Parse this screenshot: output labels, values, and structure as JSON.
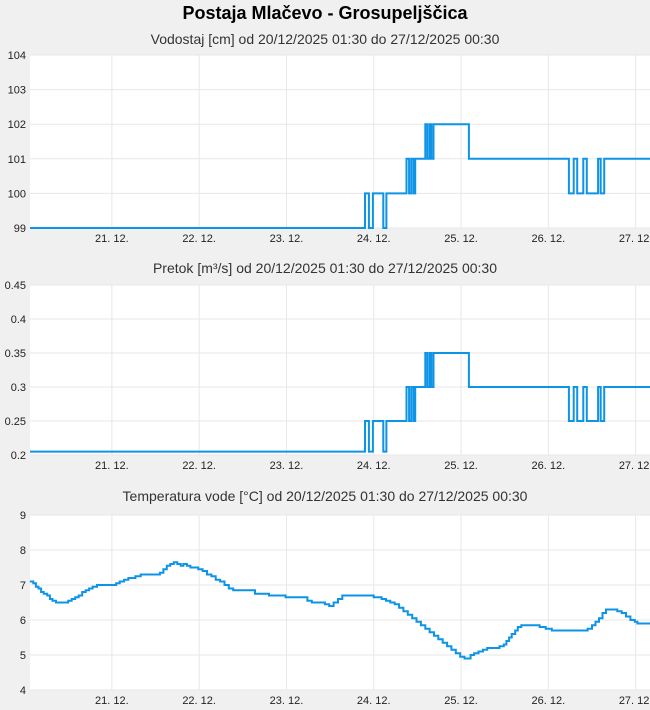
{
  "station": {
    "title": "Postaja Mlačevo - Grosupeljščica"
  },
  "colors": {
    "page_bg": "#f0f0f0",
    "plot_bg": "#ffffff",
    "gridline": "#e7e7e7",
    "line": "#0d94e6",
    "title_text": "#000000",
    "subtitle_text": "#333333",
    "tick_text": "#222222"
  },
  "chart_data": [
    {
      "type": "line",
      "title": "Vodostaj [cm] od 20/12/2025 01:30 do 27/12/2025 00:30",
      "unit": "cm",
      "ylim": [
        99,
        104
      ],
      "yticks": [
        99,
        100,
        101,
        102,
        103,
        104
      ],
      "ytick_labels": [
        "99",
        "100",
        "101",
        "102",
        "103",
        "104"
      ],
      "x_range_days": [
        20.0625,
        27.0208
      ],
      "x_tick_days": [
        21,
        22,
        23,
        24,
        25,
        26,
        27
      ],
      "x_tick_labels": [
        "21. 12.",
        "22. 12.",
        "23. 12.",
        "24. 12.",
        "25. 12.",
        "26. 12.",
        "27. 12."
      ],
      "grid": true,
      "legend": "none",
      "steps": [
        [
          20.0625,
          99
        ],
        [
          23.9,
          100
        ],
        [
          23.945,
          99
        ],
        [
          23.99,
          100
        ],
        [
          24.11,
          99
        ],
        [
          24.145,
          100
        ],
        [
          24.375,
          101
        ],
        [
          24.405,
          100
        ],
        [
          24.43,
          101
        ],
        [
          24.455,
          100
        ],
        [
          24.475,
          101
        ],
        [
          24.59,
          102
        ],
        [
          24.615,
          101
        ],
        [
          24.64,
          102
        ],
        [
          24.66,
          101
        ],
        [
          24.685,
          102
        ],
        [
          25.09,
          101
        ],
        [
          26.235,
          100
        ],
        [
          26.29,
          101
        ],
        [
          26.33,
          100
        ],
        [
          26.4,
          101
        ],
        [
          26.44,
          100
        ],
        [
          26.57,
          101
        ],
        [
          26.6,
          100
        ],
        [
          26.64,
          101
        ]
      ]
    },
    {
      "type": "line",
      "title": "Pretok [m³/s] od 20/12/2025 01:30 do 27/12/2025 00:30",
      "unit": "m³/s",
      "ylim": [
        0.2,
        0.45
      ],
      "yticks": [
        0.2,
        0.25,
        0.3,
        0.35,
        0.4,
        0.45
      ],
      "ytick_labels": [
        "0.2",
        "0.25",
        "0.3",
        "0.35",
        "0.4",
        "0.45"
      ],
      "x_range_days": [
        20.0625,
        27.0208
      ],
      "x_tick_days": [
        21,
        22,
        23,
        24,
        25,
        26,
        27
      ],
      "x_tick_labels": [
        "21. 12.",
        "22. 12.",
        "23. 12.",
        "24. 12.",
        "25. 12.",
        "26. 12.",
        "27. 12."
      ],
      "grid": true,
      "legend": "none",
      "steps": [
        [
          20.0625,
          0.205
        ],
        [
          23.9,
          0.25
        ],
        [
          23.945,
          0.205
        ],
        [
          23.99,
          0.25
        ],
        [
          24.11,
          0.205
        ],
        [
          24.145,
          0.25
        ],
        [
          24.375,
          0.3
        ],
        [
          24.405,
          0.25
        ],
        [
          24.43,
          0.3
        ],
        [
          24.455,
          0.25
        ],
        [
          24.475,
          0.3
        ],
        [
          24.59,
          0.35
        ],
        [
          24.615,
          0.3
        ],
        [
          24.64,
          0.35
        ],
        [
          24.66,
          0.3
        ],
        [
          24.685,
          0.35
        ],
        [
          25.09,
          0.3
        ],
        [
          26.235,
          0.25
        ],
        [
          26.29,
          0.3
        ],
        [
          26.33,
          0.25
        ],
        [
          26.4,
          0.3
        ],
        [
          26.44,
          0.25
        ],
        [
          26.57,
          0.3
        ],
        [
          26.6,
          0.25
        ],
        [
          26.64,
          0.3
        ]
      ]
    },
    {
      "type": "line",
      "title": "Temperatura vode [°C] od 20/12/2025 01:30 do 27/12/2025 00:30",
      "unit": "°C",
      "ylim": [
        4,
        9
      ],
      "yticks": [
        4,
        5,
        6,
        7,
        8,
        9
      ],
      "ytick_labels": [
        "4",
        "5",
        "6",
        "7",
        "8",
        "9"
      ],
      "x_range_days": [
        20.0625,
        27.0208
      ],
      "x_tick_days": [
        21,
        22,
        23,
        24,
        25,
        26,
        27
      ],
      "x_tick_labels": [
        "21. 12.",
        "22. 12.",
        "23. 12.",
        "24. 12.",
        "25. 12.",
        "26. 12.",
        "27. 12."
      ],
      "grid": true,
      "legend": "none",
      "steps": [
        [
          20.06,
          7.1
        ],
        [
          20.1,
          7.05
        ],
        [
          20.13,
          6.95
        ],
        [
          20.16,
          6.9
        ],
        [
          20.19,
          6.8
        ],
        [
          20.22,
          6.75
        ],
        [
          20.26,
          6.7
        ],
        [
          20.29,
          6.6
        ],
        [
          20.32,
          6.55
        ],
        [
          20.36,
          6.5
        ],
        [
          20.46,
          6.5
        ],
        [
          20.5,
          6.55
        ],
        [
          20.54,
          6.6
        ],
        [
          20.58,
          6.65
        ],
        [
          20.62,
          6.7
        ],
        [
          20.66,
          6.8
        ],
        [
          20.7,
          6.85
        ],
        [
          20.74,
          6.9
        ],
        [
          20.78,
          6.95
        ],
        [
          20.83,
          7.0
        ],
        [
          21.0,
          7.0
        ],
        [
          21.05,
          7.05
        ],
        [
          21.09,
          7.1
        ],
        [
          21.14,
          7.15
        ],
        [
          21.19,
          7.2
        ],
        [
          21.27,
          7.25
        ],
        [
          21.33,
          7.3
        ],
        [
          21.5,
          7.3
        ],
        [
          21.55,
          7.35
        ],
        [
          21.59,
          7.45
        ],
        [
          21.63,
          7.55
        ],
        [
          21.67,
          7.6
        ],
        [
          21.71,
          7.65
        ],
        [
          21.75,
          7.6
        ],
        [
          21.79,
          7.55
        ],
        [
          21.82,
          7.6
        ],
        [
          21.86,
          7.55
        ],
        [
          21.9,
          7.5
        ],
        [
          21.99,
          7.45
        ],
        [
          22.04,
          7.4
        ],
        [
          22.09,
          7.3
        ],
        [
          22.14,
          7.25
        ],
        [
          22.19,
          7.15
        ],
        [
          22.24,
          7.1
        ],
        [
          22.29,
          7.0
        ],
        [
          22.34,
          6.9
        ],
        [
          22.39,
          6.85
        ],
        [
          22.64,
          6.75
        ],
        [
          22.8,
          6.7
        ],
        [
          22.99,
          6.65
        ],
        [
          23.19,
          6.65
        ],
        [
          23.24,
          6.55
        ],
        [
          23.29,
          6.5
        ],
        [
          23.44,
          6.45
        ],
        [
          23.49,
          6.4
        ],
        [
          23.54,
          6.5
        ],
        [
          23.59,
          6.6
        ],
        [
          23.64,
          6.7
        ],
        [
          23.95,
          6.7
        ],
        [
          24.0,
          6.65
        ],
        [
          24.09,
          6.6
        ],
        [
          24.14,
          6.55
        ],
        [
          24.19,
          6.5
        ],
        [
          24.24,
          6.45
        ],
        [
          24.29,
          6.35
        ],
        [
          24.34,
          6.25
        ],
        [
          24.39,
          6.15
        ],
        [
          24.44,
          6.05
        ],
        [
          24.49,
          5.95
        ],
        [
          24.54,
          5.85
        ],
        [
          24.59,
          5.75
        ],
        [
          24.64,
          5.65
        ],
        [
          24.69,
          5.55
        ],
        [
          24.74,
          5.45
        ],
        [
          24.79,
          5.35
        ],
        [
          24.84,
          5.25
        ],
        [
          24.89,
          5.15
        ],
        [
          24.94,
          5.05
        ],
        [
          24.99,
          4.95
        ],
        [
          25.04,
          4.9
        ],
        [
          25.11,
          5.0
        ],
        [
          25.15,
          5.05
        ],
        [
          25.2,
          5.1
        ],
        [
          25.25,
          5.15
        ],
        [
          25.3,
          5.2
        ],
        [
          25.44,
          5.25
        ],
        [
          25.49,
          5.3
        ],
        [
          25.52,
          5.4
        ],
        [
          25.55,
          5.5
        ],
        [
          25.58,
          5.6
        ],
        [
          25.62,
          5.7
        ],
        [
          25.65,
          5.8
        ],
        [
          25.69,
          5.85
        ],
        [
          25.9,
          5.8
        ],
        [
          25.97,
          5.75
        ],
        [
          26.04,
          5.7
        ],
        [
          26.45,
          5.75
        ],
        [
          26.5,
          5.85
        ],
        [
          26.54,
          5.95
        ],
        [
          26.58,
          6.05
        ],
        [
          26.62,
          6.2
        ],
        [
          26.66,
          6.3
        ],
        [
          26.75,
          6.3
        ],
        [
          26.79,
          6.25
        ],
        [
          26.84,
          6.2
        ],
        [
          26.89,
          6.1
        ],
        [
          26.94,
          6.0
        ],
        [
          26.99,
          5.95
        ],
        [
          27.02,
          5.9
        ]
      ]
    }
  ]
}
